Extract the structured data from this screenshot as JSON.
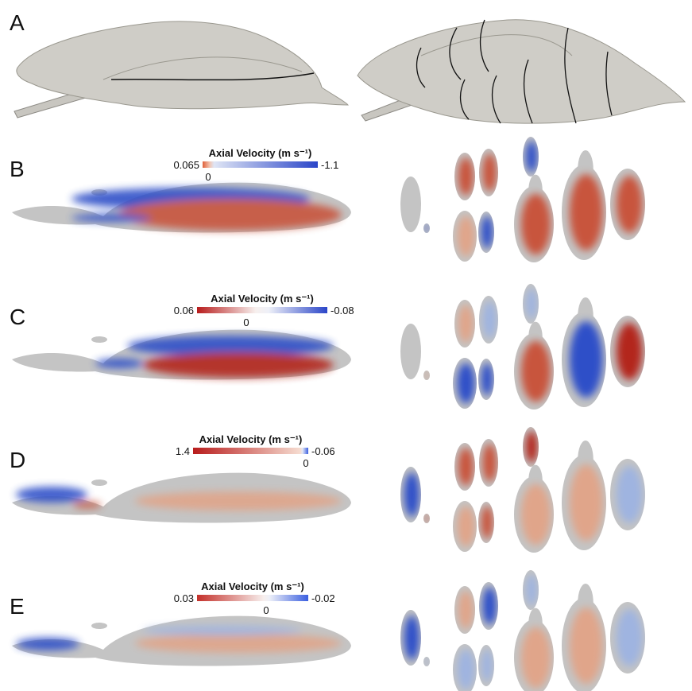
{
  "panels": [
    {
      "label": "A"
    },
    {
      "label": "B",
      "colorbar": {
        "title": "Axial Velocity (m s⁻¹)",
        "left_label": "0.065",
        "right_label": "-1.1",
        "zero_label": "0"
      }
    },
    {
      "label": "C",
      "colorbar": {
        "title": "Axial Velocity (m s⁻¹)",
        "left_label": "0.06",
        "right_label": "-0.08",
        "zero_label": "0"
      }
    },
    {
      "label": "D",
      "colorbar": {
        "title": "Axial Velocity (m s⁻¹)",
        "left_label": "1.4",
        "right_label": "-0.06",
        "zero_label": "0"
      }
    },
    {
      "label": "E",
      "colorbar": {
        "title": "Axial Velocity (m s⁻¹)",
        "left_label": "0.03",
        "right_label": "-0.02",
        "zero_label": "0"
      }
    }
  ]
}
